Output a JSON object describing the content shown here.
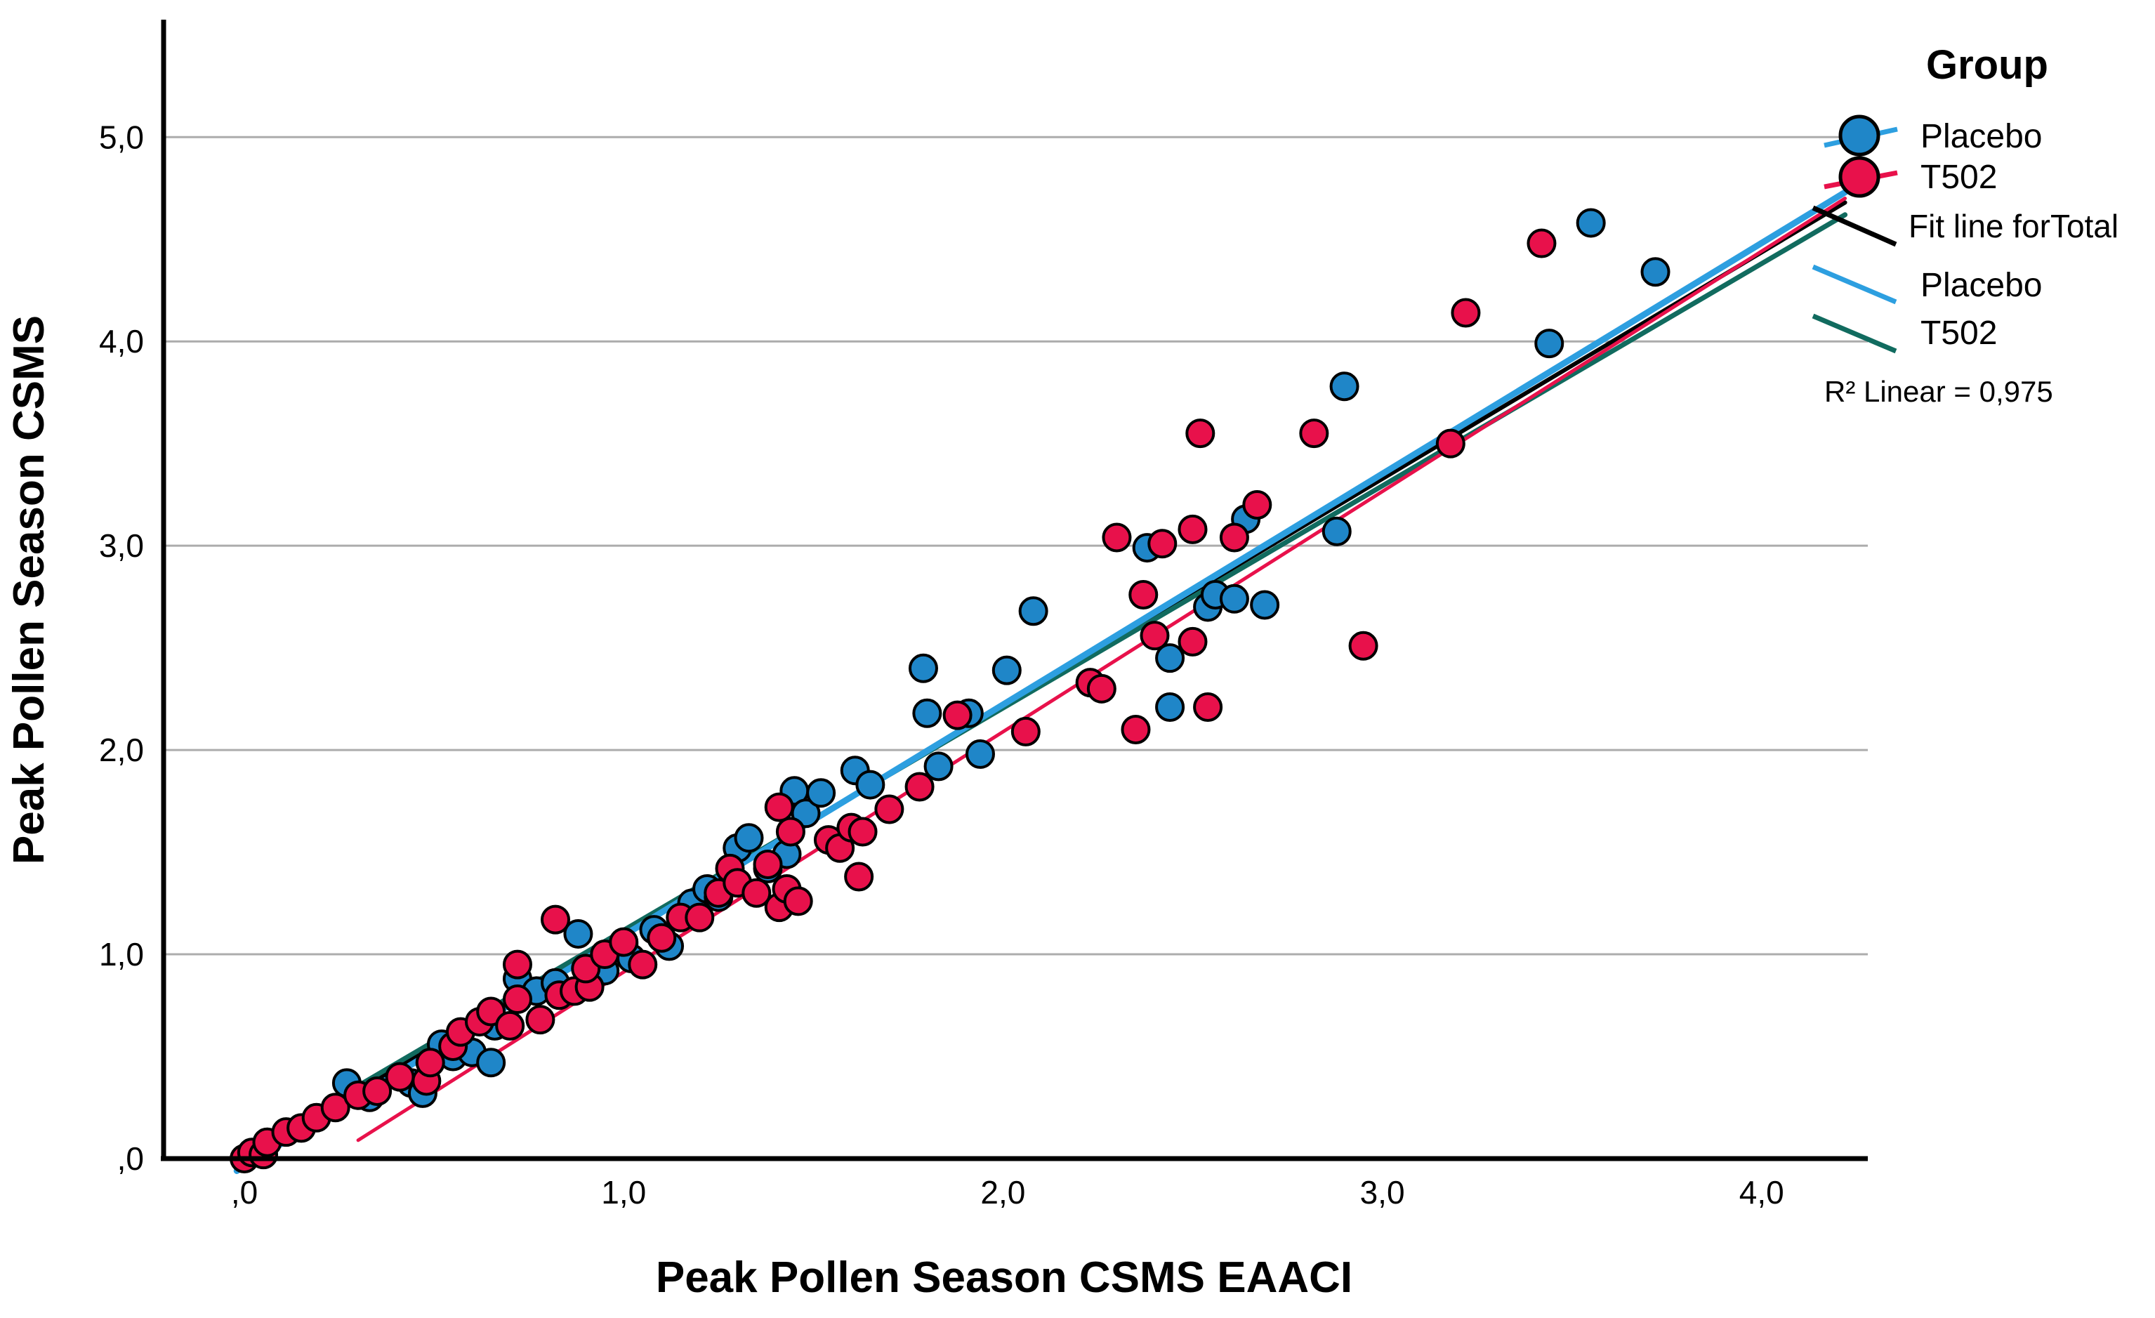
{
  "chart_data": {
    "type": "scatter",
    "title": "",
    "xlabel": "Peak Pollen Season CSMS EAACI",
    "ylabel": "Peak Pollen Season CSMS",
    "xlim": [
      -0.213,
      4.28
    ],
    "ylim": [
      0,
      5.568
    ],
    "grid": "horizontal",
    "grid_color": "#ACACAC",
    "axis_color": "#000000",
    "x_ticks": {
      "values": [
        0,
        1,
        2,
        3,
        4
      ],
      "labels": [
        ",0",
        "1,0",
        "2,0",
        "3,0",
        "4,0"
      ]
    },
    "y_ticks": {
      "values": [
        0,
        1,
        2,
        3,
        4,
        5
      ],
      "labels": [
        ",0",
        "1,0",
        "2,0",
        "3,0",
        "4,0",
        "5,0"
      ]
    },
    "series": [
      {
        "name": "Placebo",
        "marker_color": "#1F86C8",
        "marker_outline": "#000000",
        "points": [
          [
            0.27,
            0.37
          ],
          [
            0.33,
            0.3
          ],
          [
            0.44,
            0.37
          ],
          [
            0.47,
            0.32
          ],
          [
            0.52,
            0.56
          ],
          [
            0.55,
            0.5
          ],
          [
            0.6,
            0.52
          ],
          [
            0.65,
            0.47
          ],
          [
            0.66,
            0.65
          ],
          [
            0.72,
            0.88
          ],
          [
            0.77,
            0.82
          ],
          [
            0.82,
            0.86
          ],
          [
            0.88,
            1.1
          ],
          [
            0.95,
            0.92
          ],
          [
            1.0,
            1.05
          ],
          [
            1.02,
            0.98
          ],
          [
            1.08,
            1.12
          ],
          [
            1.12,
            1.04
          ],
          [
            1.18,
            1.25
          ],
          [
            1.22,
            1.32
          ],
          [
            1.25,
            1.28
          ],
          [
            1.3,
            1.52
          ],
          [
            1.33,
            1.57
          ],
          [
            1.38,
            1.42
          ],
          [
            1.43,
            1.49
          ],
          [
            1.45,
            1.8
          ],
          [
            1.48,
            1.69
          ],
          [
            1.52,
            1.79
          ],
          [
            1.61,
            1.9
          ],
          [
            1.65,
            1.83
          ],
          [
            1.79,
            2.4
          ],
          [
            1.8,
            2.18
          ],
          [
            1.83,
            1.92
          ],
          [
            1.91,
            2.18
          ],
          [
            1.94,
            1.98
          ],
          [
            2.01,
            2.39
          ],
          [
            2.08,
            2.68
          ],
          [
            2.38,
            2.99
          ],
          [
            2.44,
            2.45
          ],
          [
            2.44,
            2.21
          ],
          [
            2.54,
            2.7
          ],
          [
            2.56,
            2.76
          ],
          [
            2.61,
            2.74
          ],
          [
            2.69,
            2.71
          ],
          [
            2.64,
            3.13
          ],
          [
            2.88,
            3.07
          ],
          [
            2.9,
            3.78
          ],
          [
            3.44,
            3.99
          ],
          [
            3.55,
            4.58
          ],
          [
            3.72,
            4.34
          ]
        ]
      },
      {
        "name": "T502",
        "marker_color": "#E8114B",
        "marker_outline": "#000000",
        "points": [
          [
            0.0,
            0.0
          ],
          [
            0.02,
            0.03
          ],
          [
            0.05,
            0.02
          ],
          [
            0.06,
            0.08
          ],
          [
            0.11,
            0.13
          ],
          [
            0.15,
            0.15
          ],
          [
            0.19,
            0.2
          ],
          [
            0.24,
            0.25
          ],
          [
            0.3,
            0.31
          ],
          [
            0.35,
            0.33
          ],
          [
            0.41,
            0.4
          ],
          [
            0.48,
            0.38
          ],
          [
            0.49,
            0.47
          ],
          [
            0.55,
            0.55
          ],
          [
            0.57,
            0.62
          ],
          [
            0.62,
            0.67
          ],
          [
            0.65,
            0.72
          ],
          [
            0.7,
            0.65
          ],
          [
            0.72,
            0.78
          ],
          [
            0.78,
            0.68
          ],
          [
            0.72,
            0.95
          ],
          [
            0.83,
            0.8
          ],
          [
            0.87,
            0.82
          ],
          [
            0.91,
            0.84
          ],
          [
            0.9,
            0.93
          ],
          [
            0.95,
            1.0
          ],
          [
            1.0,
            1.06
          ],
          [
            0.82,
            1.17
          ],
          [
            1.05,
            0.95
          ],
          [
            1.1,
            1.08
          ],
          [
            1.15,
            1.18
          ],
          [
            1.2,
            1.18
          ],
          [
            1.25,
            1.3
          ],
          [
            1.28,
            1.42
          ],
          [
            1.3,
            1.35
          ],
          [
            1.35,
            1.3
          ],
          [
            1.38,
            1.44
          ],
          [
            1.41,
            1.23
          ],
          [
            1.41,
            1.72
          ],
          [
            1.43,
            1.32
          ],
          [
            1.44,
            1.6
          ],
          [
            1.46,
            1.26
          ],
          [
            1.54,
            1.56
          ],
          [
            1.57,
            1.52
          ],
          [
            1.6,
            1.62
          ],
          [
            1.63,
            1.6
          ],
          [
            1.62,
            1.38
          ],
          [
            1.7,
            1.71
          ],
          [
            1.78,
            1.82
          ],
          [
            1.88,
            2.17
          ],
          [
            2.06,
            2.09
          ],
          [
            2.23,
            2.33
          ],
          [
            2.26,
            2.3
          ],
          [
            2.35,
            2.1
          ],
          [
            2.37,
            2.76
          ],
          [
            2.4,
            2.56
          ],
          [
            2.5,
            2.53
          ],
          [
            2.54,
            2.21
          ],
          [
            2.3,
            3.04
          ],
          [
            2.42,
            3.01
          ],
          [
            2.5,
            3.08
          ],
          [
            2.61,
            3.04
          ],
          [
            2.67,
            3.2
          ],
          [
            2.52,
            3.55
          ],
          [
            2.82,
            3.55
          ],
          [
            2.95,
            2.51
          ],
          [
            3.18,
            3.5
          ],
          [
            3.22,
            4.14
          ],
          [
            3.42,
            4.48
          ]
        ]
      }
    ],
    "fit_lines": [
      {
        "name": "Fit line for Total",
        "color": "#000000",
        "width": 6,
        "x1": 0.0,
        "y1": 0.0,
        "x2": 4.22,
        "y2": 4.68
      },
      {
        "name": "Fit line for T502 (teal)",
        "color": "#116B5F",
        "width": 7,
        "x1": 0.0,
        "y1": 0.03,
        "x2": 4.22,
        "y2": 4.62
      },
      {
        "name": "Fit line for T502 (crimson)",
        "color": "#E8114B",
        "width": 5,
        "x1": 0.3,
        "y1": 0.09,
        "x2": 4.22,
        "y2": 4.7
      },
      {
        "name": "Fit line for Placebo",
        "color": "#2D9FE0",
        "width": 9,
        "x1": -0.02,
        "y1": -0.06,
        "x2": 4.22,
        "y2": 4.73
      }
    ],
    "legend": {
      "title": "Group",
      "marker_entries": [
        {
          "label": "Placebo",
          "color": "#1F86C8",
          "line_color": "#2D9FE0"
        },
        {
          "label": "T502",
          "color": "#E8114B",
          "line_color": "#E8114B"
        }
      ],
      "line_entries": [
        {
          "label": "Fit line forTotal",
          "color": "#000000"
        },
        {
          "label": "Placebo",
          "color": "#2D9FE0"
        },
        {
          "label": "T502",
          "color": "#116B5F"
        }
      ]
    },
    "annotation": "R² Linear = 0,975"
  }
}
